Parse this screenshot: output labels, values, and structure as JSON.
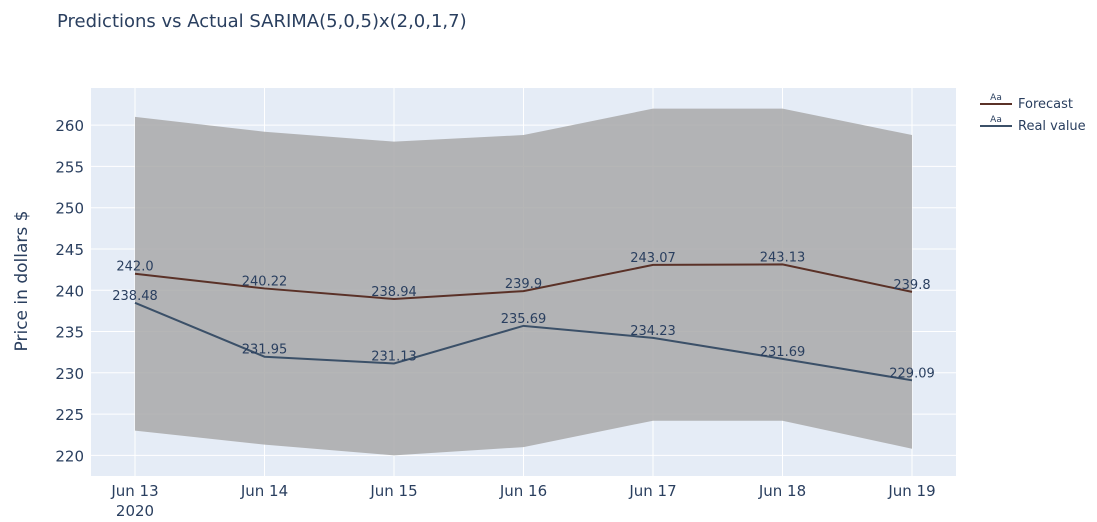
{
  "chart_data": {
    "type": "line",
    "title": "Predictions vs Actual SARIMA(5,0,5)x(2,0,1,7)",
    "xlabel": "",
    "ylabel": "Price in dollars $",
    "categories": [
      "Jun 13",
      "Jun 14",
      "Jun 15",
      "Jun 16",
      "Jun 17",
      "Jun 18",
      "Jun 19"
    ],
    "x_sublabels": [
      "2020",
      "",
      "",
      "",
      "",
      "",
      ""
    ],
    "ylim": [
      217.5,
      264.5
    ],
    "yticks": [
      220,
      225,
      230,
      235,
      240,
      245,
      250,
      255,
      260
    ],
    "grid": true,
    "legend_position": "top-right",
    "series": [
      {
        "name": "Forecast",
        "color": "#5a3127",
        "values": [
          242.0,
          240.22,
          238.94,
          239.9,
          243.07,
          243.13,
          239.8
        ],
        "labels": [
          "242.0",
          "240.22",
          "238.94",
          "239.9",
          "243.07",
          "243.13",
          "239.8"
        ]
      },
      {
        "name": "Real value",
        "color": "#3b5068",
        "values": [
          238.48,
          231.95,
          231.13,
          235.69,
          234.23,
          231.69,
          229.09
        ],
        "labels": [
          "238.48",
          "231.95",
          "231.13",
          "235.69",
          "234.23",
          "231.69",
          "229.09"
        ]
      }
    ],
    "band": {
      "color": "#a9a9a9",
      "upper": [
        261.0,
        259.2,
        258.0,
        258.8,
        262.0,
        262.0,
        258.8
      ],
      "lower": [
        223.0,
        221.3,
        220.0,
        221.0,
        224.2,
        224.2,
        220.8
      ]
    },
    "colors": {
      "plot_bg": "#e5ecf6",
      "grid": "#ffffff",
      "text": "#2a3f5f",
      "band_opacity": "0.85"
    }
  }
}
